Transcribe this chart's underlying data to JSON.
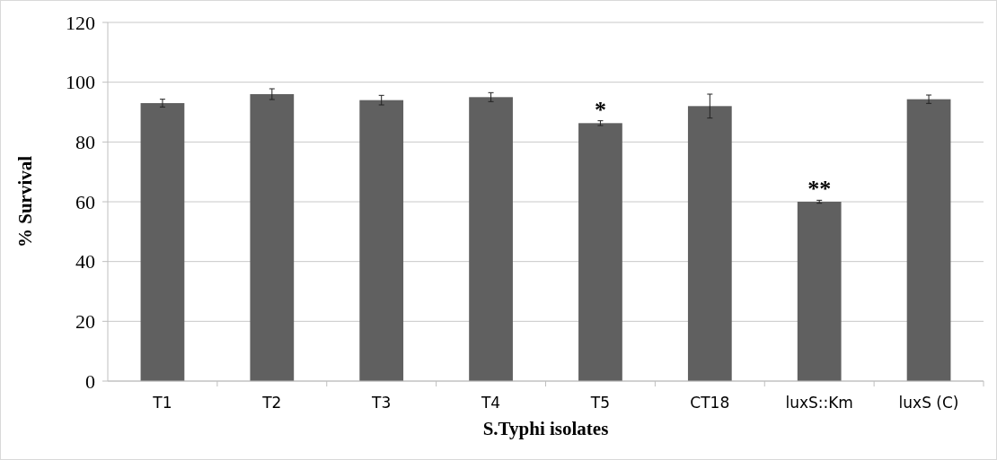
{
  "chart_data": {
    "type": "bar",
    "xlabel": "S.Typhi isolates",
    "ylabel": "% Survival",
    "categories": [
      "T1",
      "T2",
      "T3",
      "T4",
      "T5",
      "CT18",
      "luxS::Km",
      "luxS (C)"
    ],
    "values": [
      93,
      96,
      94,
      95,
      86.3,
      92,
      60,
      94.3
    ],
    "errors": [
      1.3,
      1.8,
      1.6,
      1.5,
      0.8,
      4,
      0.5,
      1.4
    ],
    "color": "#606060",
    "ylim": [
      0,
      120
    ],
    "yticks": [
      0,
      20,
      40,
      60,
      80,
      100,
      120
    ],
    "grid": "y",
    "annotations": [
      {
        "text": "*",
        "x": "T5",
        "y": 87.1
      },
      {
        "text": "**",
        "x": "luxS::Km",
        "y": 60.5
      }
    ]
  }
}
